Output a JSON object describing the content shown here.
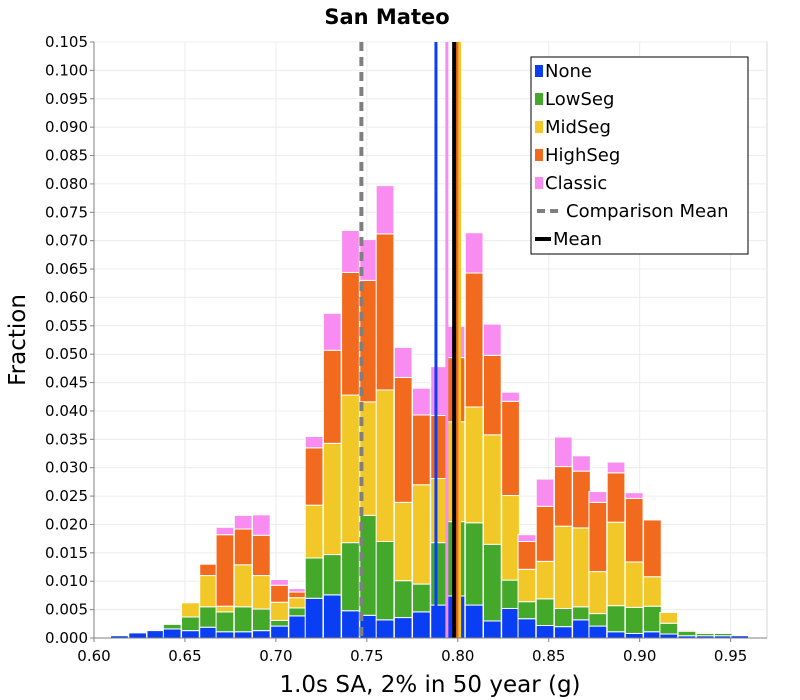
{
  "chart_data": {
    "type": "bar",
    "title": "San Mateo",
    "xlabel": "1.0s SA, 2% in 50 year (g)",
    "ylabel": "Fraction",
    "xlim": [
      0.6,
      0.97
    ],
    "ylim": [
      0,
      0.105
    ],
    "x_ticks": [
      "0.60",
      "0.65",
      "0.70",
      "0.75",
      "0.80",
      "0.85",
      "0.90",
      "0.95"
    ],
    "x_tick_values": [
      0.6,
      0.65,
      0.7,
      0.75,
      0.8,
      0.85,
      0.9,
      0.95
    ],
    "y_ticks": [
      "0.000",
      "0.005",
      "0.010",
      "0.015",
      "0.020",
      "0.025",
      "0.030",
      "0.035",
      "0.040",
      "0.045",
      "0.050",
      "0.055",
      "0.060",
      "0.065",
      "0.070",
      "0.075",
      "0.080",
      "0.085",
      "0.090",
      "0.095",
      "0.100",
      "0.105"
    ],
    "y_tick_values": [
      0,
      0.005,
      0.01,
      0.015,
      0.02,
      0.025,
      0.03,
      0.035,
      0.04,
      0.045,
      0.05,
      0.055,
      0.06,
      0.065,
      0.07,
      0.075,
      0.08,
      0.085,
      0.09,
      0.095,
      0.1,
      0.105
    ],
    "grid": true,
    "stacked": true,
    "bin_width": 0.00975,
    "legend_position": "top-right",
    "x": [
      0.614,
      0.624,
      0.634,
      0.643,
      0.653,
      0.663,
      0.672,
      0.682,
      0.692,
      0.702,
      0.712,
      0.721,
      0.731,
      0.741,
      0.751,
      0.76,
      0.77,
      0.78,
      0.79,
      0.799,
      0.809,
      0.819,
      0.829,
      0.838,
      0.848,
      0.858,
      0.868,
      0.877,
      0.887,
      0.897,
      0.907,
      0.916,
      0.926,
      0.936,
      0.946,
      0.955
    ],
    "series": [
      {
        "name": "None",
        "color": "#0a3ef2",
        "values": [
          0.0004,
          0.0009,
          0.0013,
          0.0016,
          0.0013,
          0.0019,
          0.0011,
          0.0011,
          0.0013,
          0.0021,
          0.0039,
          0.007,
          0.0076,
          0.0048,
          0.004,
          0.0032,
          0.0036,
          0.0046,
          0.0058,
          0.0074,
          0.0058,
          0.003,
          0.0052,
          0.0034,
          0.0022,
          0.002,
          0.0032,
          0.0021,
          0.0011,
          0.0008,
          0.0011,
          0.0007,
          0.0004,
          0.0004,
          0.0004,
          0.0004
        ]
      },
      {
        "name": "LowSeg",
        "color": "#44a82a",
        "values": [
          0,
          0,
          0,
          0.0008,
          0.0024,
          0.0036,
          0.0035,
          0.0044,
          0.0038,
          0.001,
          0.0014,
          0.0071,
          0.0071,
          0.012,
          0.0176,
          0.0138,
          0.0065,
          0.0049,
          0.011,
          0.0131,
          0.0145,
          0.0135,
          0.005,
          0.003,
          0.0047,
          0.0032,
          0.0023,
          0.0022,
          0.0046,
          0.0046,
          0.0045,
          0.0019,
          0.0008,
          0.0004,
          0.0004,
          0
        ]
      },
      {
        "name": "MidSeg",
        "color": "#f2c828",
        "values": [
          0,
          0,
          0,
          0,
          0.0025,
          0.0055,
          0.001,
          0.0074,
          0.0059,
          0.0032,
          0.0018,
          0.0093,
          0.0196,
          0.026,
          0.02,
          0.0267,
          0.0138,
          0.0175,
          0.0113,
          0.0176,
          0.0204,
          0.0193,
          0.0149,
          0.0057,
          0.0066,
          0.0145,
          0.0139,
          0.0074,
          0.0147,
          0.008,
          0.0052,
          0.0019,
          0.0002,
          0.0002,
          0,
          0
        ]
      },
      {
        "name": "HighSeg",
        "color": "#f26a1e",
        "values": [
          0,
          0,
          0,
          0,
          0,
          0.002,
          0.0126,
          0.0063,
          0.0071,
          0.003,
          0.001,
          0.0101,
          0.0164,
          0.0216,
          0.0214,
          0.0275,
          0.022,
          0.0123,
          0.0111,
          0.0113,
          0.0236,
          0.014,
          0.0166,
          0.0049,
          0.0097,
          0.0105,
          0.01,
          0.0122,
          0.0087,
          0.0112,
          0.01,
          0.0,
          0,
          0,
          0,
          0
        ]
      },
      {
        "name": "Classic",
        "color": "#f98cf0",
        "values": [
          0,
          0,
          0,
          0,
          0,
          0,
          0.0013,
          0.0024,
          0.0036,
          0.001,
          0.0006,
          0.002,
          0.0065,
          0.0074,
          0.0072,
          0.0085,
          0.0053,
          0.0047,
          0.0086,
          0.0055,
          0.0071,
          0.0055,
          0.0016,
          0.0012,
          0.0048,
          0.0052,
          0.0027,
          0.0019,
          0.0019,
          0.001,
          0,
          0,
          0,
          0,
          0,
          0
        ]
      }
    ],
    "vertical_lines": [
      {
        "name": "None mean",
        "value": 0.788,
        "color": "#0a3ef2",
        "style": "solid"
      },
      {
        "name": "Classic mean",
        "value": 0.794,
        "color": "#f98cf0",
        "style": "solid"
      },
      {
        "name": "MidSeg mean",
        "value": 0.801,
        "color": "#f2c828",
        "style": "solid"
      },
      {
        "name": "HighSeg mean",
        "value": 0.7995,
        "color": "#f26a1e",
        "style": "solid"
      },
      {
        "name": "Mean",
        "value": 0.798,
        "color": "#000000",
        "style": "solid"
      },
      {
        "name": "Comparison Mean",
        "value": 0.747,
        "color": "#7f7f7f",
        "style": "dashed"
      }
    ],
    "legend": [
      {
        "label": "None",
        "color": "#0a3ef2",
        "kind": "box"
      },
      {
        "label": "LowSeg",
        "color": "#44a82a",
        "kind": "box"
      },
      {
        "label": "MidSeg",
        "color": "#f2c828",
        "kind": "box"
      },
      {
        "label": "HighSeg",
        "color": "#f26a1e",
        "kind": "box"
      },
      {
        "label": "Classic",
        "color": "#f98cf0",
        "kind": "box"
      },
      {
        "label": "Comparison Mean",
        "color": "#7f7f7f",
        "kind": "dashed"
      },
      {
        "label": "Mean",
        "color": "#000000",
        "kind": "line"
      }
    ]
  }
}
